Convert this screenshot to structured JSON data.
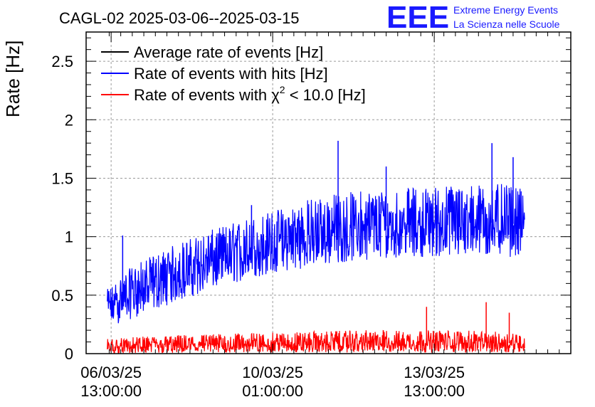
{
  "chart_data": {
    "type": "line",
    "title": "CAGL-02 2025-03-06--2025-03-15",
    "ylabel": "Rate [Hz]",
    "xlabel": "",
    "ylim": [
      0,
      2.75
    ],
    "y_ticks": [
      "0",
      "0.5",
      "1",
      "1.5",
      "2",
      "2.5"
    ],
    "x_ticks": [
      {
        "date": "06/03/25",
        "time": "13:00:00"
      },
      {
        "date": "10/03/25",
        "time": "01:00:00"
      },
      {
        "date": "13/03/25",
        "time": "13:00:00"
      }
    ],
    "grid": true,
    "legend_position": "top-left",
    "legend": [
      {
        "label": "Average rate of events [Hz]",
        "color": "#000000"
      },
      {
        "label": "Rate of events with hits [Hz]",
        "color": "#0000ff"
      },
      {
        "label_prefix": "Rate of events with ",
        "label_symbol": "χ",
        "label_sup": "2",
        "label_suffix": " < 10.0 [Hz]",
        "color": "#ff0000"
      }
    ],
    "series": [
      {
        "name": "Rate of events with hits [Hz]",
        "color": "#0000ff",
        "x": [
          "2025-03-06 11:00",
          "2025-03-07 00:00",
          "2025-03-08 00:00",
          "2025-03-09 00:00",
          "2025-03-10 00:00",
          "2025-03-11 00:00",
          "2025-03-12 00:00",
          "2025-03-13 00:00",
          "2025-03-14 00:00",
          "2025-03-15 00:00",
          "2025-03-15 12:00"
        ],
        "mean": [
          0.4,
          0.52,
          0.68,
          0.82,
          0.92,
          1.0,
          1.08,
          1.1,
          1.12,
          1.12,
          1.1
        ],
        "low": [
          0.22,
          0.3,
          0.45,
          0.58,
          0.68,
          0.75,
          0.8,
          0.83,
          0.82,
          0.83,
          0.82
        ],
        "high": [
          0.55,
          0.75,
          0.95,
          1.1,
          1.22,
          1.35,
          1.4,
          1.42,
          1.45,
          1.45,
          1.4
        ]
      },
      {
        "name": "Rate of events with χ2 < 10.0 [Hz]",
        "color": "#ff0000",
        "x": [
          "2025-03-06 11:00",
          "2025-03-08 00:00",
          "2025-03-10 00:00",
          "2025-03-12 00:00",
          "2025-03-14 00:00",
          "2025-03-15 12:00"
        ],
        "mean": [
          0.05,
          0.07,
          0.08,
          0.09,
          0.09,
          0.09
        ],
        "low": [
          0.0,
          0.0,
          0.01,
          0.01,
          0.01,
          0.01
        ],
        "high": [
          0.13,
          0.16,
          0.18,
          0.2,
          0.2,
          0.18
        ]
      }
    ],
    "spikes": [
      {
        "series": 0,
        "x": "2025-03-06 19:00",
        "y": 1.01
      },
      {
        "series": 0,
        "x": "2025-03-09 14:00",
        "y": 1.27
      },
      {
        "series": 0,
        "x": "2025-03-11 11:00",
        "y": 1.82
      },
      {
        "series": 0,
        "x": "2025-03-12 12:00",
        "y": 1.6
      },
      {
        "series": 0,
        "x": "2025-03-14 19:00",
        "y": 1.8
      },
      {
        "series": 0,
        "x": "2025-03-15 06:00",
        "y": 1.68
      },
      {
        "series": 1,
        "x": "2025-03-13 09:00",
        "y": 0.4
      },
      {
        "series": 1,
        "x": "2025-03-14 16:00",
        "y": 0.44
      },
      {
        "series": 1,
        "x": "2025-03-15 04:00",
        "y": 0.35
      }
    ]
  },
  "logo": {
    "letters": "EEE",
    "line1": "Extreme Energy Events",
    "line2": "La Scienza nelle Scuole",
    "color": "#1a1aff"
  }
}
